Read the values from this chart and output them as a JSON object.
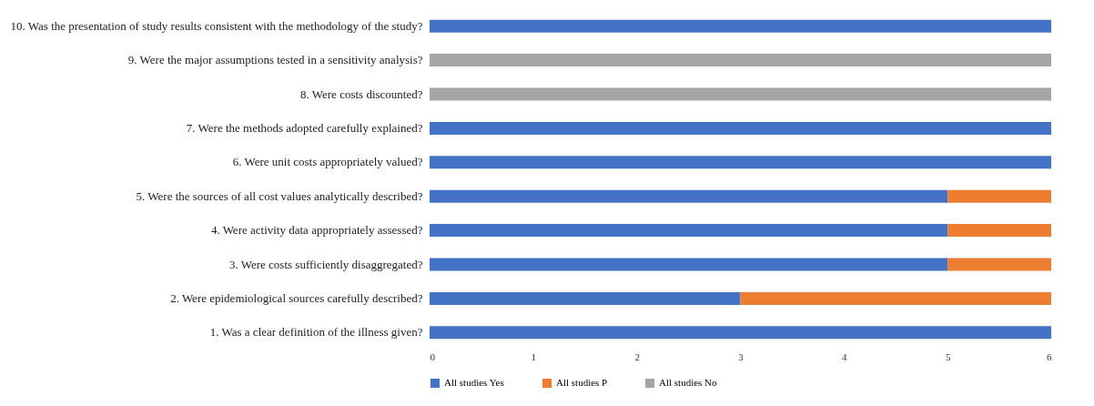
{
  "chart_data": {
    "type": "bar",
    "orientation": "horizontal",
    "stacked": true,
    "categories": [
      "10. Was the presentation of study results consistent with the methodology of the study?",
      "9. Were the major assumptions tested in a sensitivity analysis?",
      "8. Were costs discounted?",
      "7. Were the methods adopted carefully explained?",
      "6. Were unit costs appropriately valued?",
      "5. Were the sources of all cost values analytically described?",
      "4. Were activity data appropriately assessed?",
      "3. Were costs sufficiently disaggregated?",
      "2. Were epidemiological sources carefully described?",
      "1. Was a clear definition of the illness given?"
    ],
    "series": [
      {
        "name": "All studies Yes",
        "color": "#4472c4",
        "values": [
          6,
          null,
          null,
          6,
          6,
          5,
          5,
          5,
          3,
          6
        ]
      },
      {
        "name": "All studies P",
        "color": "#ed7d31",
        "values": [
          null,
          null,
          null,
          null,
          null,
          1,
          1,
          1,
          3,
          null
        ]
      },
      {
        "name": "All studies No",
        "color": "#a5a5a5",
        "values": [
          null,
          6,
          6,
          null,
          null,
          null,
          null,
          null,
          null,
          null
        ]
      }
    ],
    "xlim": [
      0,
      6
    ],
    "xticks": [
      0,
      1,
      2,
      3,
      4,
      5,
      6
    ],
    "grid": false,
    "legend": "bottom"
  }
}
